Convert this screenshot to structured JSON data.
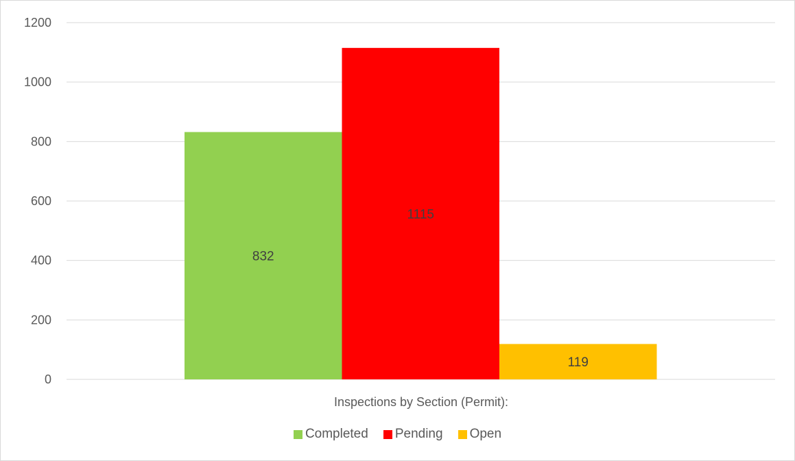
{
  "chart_data": {
    "type": "bar",
    "categories": [
      "Inspections by Section (Permit):"
    ],
    "series": [
      {
        "name": "Completed",
        "values": [
          832
        ],
        "color": "#92d050"
      },
      {
        "name": "Pending",
        "values": [
          1115
        ],
        "color": "#ff0000"
      },
      {
        "name": "Open",
        "values": [
          119
        ],
        "color": "#ffc000"
      }
    ],
    "yticks": [
      "0",
      "200",
      "400",
      "600",
      "800",
      "1000",
      "1200"
    ],
    "ylim": [
      0,
      1200
    ],
    "grid": true,
    "legend_position": "bottom",
    "data_labels": true
  }
}
